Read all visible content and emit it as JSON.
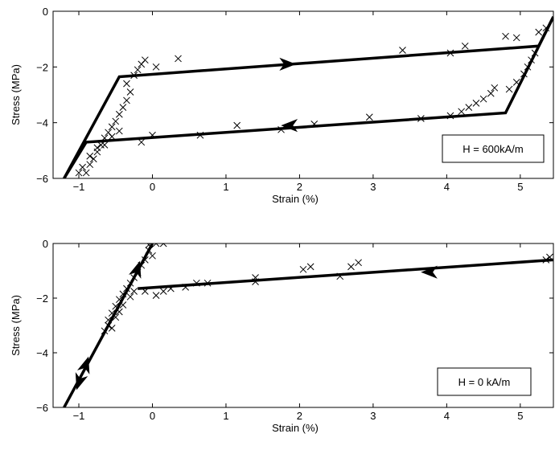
{
  "chart_data": [
    {
      "type": "scatter",
      "annotation": "H = 600kA/m",
      "xlabel": "Strain (%)",
      "ylabel": "Stress (MPa)",
      "xlim": [
        -1.35,
        5.45
      ],
      "ylim": [
        -6,
        0
      ],
      "xticks": [
        -1,
        0,
        1,
        2,
        3,
        4,
        5
      ],
      "yticks": [
        0,
        -2,
        -4,
        -6
      ],
      "x_tick_labels": [
        "−1",
        "0",
        "1",
        "2",
        "3",
        "4",
        "5"
      ],
      "y_tick_labels": [
        "0",
        "−2",
        "−4",
        "−6"
      ],
      "grid": false,
      "legend": "none",
      "model_line": [
        [
          -1.2,
          -6.0
        ],
        [
          -0.45,
          -2.35
        ],
        [
          5.25,
          -1.25
        ],
        [
          5.45,
          -0.2
        ]
      ],
      "model_line_unloading": [
        [
          5.45,
          -0.2
        ],
        [
          4.8,
          -3.65
        ],
        [
          -0.9,
          -4.7
        ],
        [
          -1.2,
          -6.0
        ]
      ],
      "arrows": [
        {
          "at": [
            1.85,
            -1.9
          ],
          "direction": "right"
        },
        {
          "at": [
            1.85,
            -4.1
          ],
          "direction": "left"
        }
      ],
      "measured": [
        [
          -1.0,
          -5.8
        ],
        [
          -0.95,
          -5.6
        ],
        [
          -0.9,
          -5.8
        ],
        [
          -0.85,
          -5.5
        ],
        [
          -0.8,
          -5.3
        ],
        [
          -0.75,
          -5.05
        ],
        [
          -0.7,
          -4.8
        ],
        [
          -0.65,
          -4.55
        ],
        [
          -0.6,
          -4.35
        ],
        [
          -0.55,
          -4.15
        ],
        [
          -0.5,
          -3.95
        ],
        [
          -0.45,
          -3.7
        ],
        [
          -0.4,
          -3.45
        ],
        [
          -0.35,
          -3.2
        ],
        [
          -0.3,
          -2.9
        ],
        [
          -0.85,
          -5.2
        ],
        [
          -0.75,
          -4.9
        ],
        [
          -0.65,
          -4.8
        ],
        [
          -0.55,
          -4.5
        ],
        [
          -0.45,
          -4.3
        ],
        [
          -0.35,
          -2.6
        ],
        [
          -0.25,
          -2.3
        ],
        [
          -0.2,
          -2.1
        ],
        [
          -0.15,
          -1.9
        ],
        [
          -0.1,
          -1.75
        ],
        [
          0.05,
          -2.0
        ],
        [
          0.35,
          -1.7
        ],
        [
          -0.15,
          -4.7
        ],
        [
          0.0,
          -4.45
        ],
        [
          0.65,
          -4.45
        ],
        [
          1.15,
          -4.1
        ],
        [
          1.75,
          -4.25
        ],
        [
          2.2,
          -4.05
        ],
        [
          2.95,
          -3.8
        ],
        [
          3.65,
          -3.85
        ],
        [
          4.05,
          -3.75
        ],
        [
          4.2,
          -3.6
        ],
        [
          4.3,
          -3.45
        ],
        [
          4.4,
          -3.3
        ],
        [
          4.5,
          -3.15
        ],
        [
          4.6,
          -2.95
        ],
        [
          4.65,
          -2.75
        ],
        [
          4.85,
          -2.8
        ],
        [
          4.95,
          -2.55
        ],
        [
          5.05,
          -2.25
        ],
        [
          5.1,
          -2.0
        ],
        [
          5.15,
          -1.75
        ],
        [
          5.2,
          -1.5
        ],
        [
          3.4,
          -1.4
        ],
        [
          4.05,
          -1.5
        ],
        [
          4.25,
          -1.25
        ],
        [
          4.8,
          -0.9
        ],
        [
          4.95,
          -0.95
        ],
        [
          5.25,
          -0.75
        ],
        [
          5.35,
          -0.6
        ]
      ]
    },
    {
      "type": "scatter",
      "annotation": "H = 0 kA/m",
      "xlabel": "Strain (%)",
      "ylabel": "Stress (MPa)",
      "xlim": [
        -1.35,
        5.45
      ],
      "ylim": [
        -6,
        0
      ],
      "xticks": [
        -1,
        0,
        1,
        2,
        3,
        4,
        5
      ],
      "yticks": [
        0,
        -2,
        -4,
        -6
      ],
      "x_tick_labels": [
        "−1",
        "0",
        "1",
        "2",
        "3",
        "4",
        "5"
      ],
      "y_tick_labels": [
        "0",
        "−2",
        "−4",
        "−6"
      ],
      "grid": false,
      "legend": "none",
      "model_line": [
        [
          -1.2,
          -6.0
        ],
        [
          0.0,
          0.0
        ]
      ],
      "model_line_unloading": [
        [
          5.45,
          -0.6
        ],
        [
          -0.2,
          -1.65
        ]
      ],
      "arrows": [
        {
          "at": [
            3.75,
            -1.05
          ],
          "direction": "left"
        },
        {
          "at": [
            -0.2,
            -0.9
          ],
          "direction": "up"
        },
        {
          "at": [
            -1.0,
            -5.1
          ],
          "direction": "down"
        },
        {
          "at": [
            -0.9,
            -4.4
          ],
          "direction": "up"
        }
      ],
      "measured": [
        [
          -0.05,
          -0.05
        ],
        [
          0.05,
          0.0
        ],
        [
          0.15,
          0.0
        ],
        [
          -0.05,
          -0.25
        ],
        [
          0.0,
          -0.45
        ],
        [
          -0.1,
          -0.6
        ],
        [
          -0.15,
          -0.8
        ],
        [
          -0.2,
          -1.05
        ],
        [
          -0.25,
          -1.25
        ],
        [
          -0.3,
          -1.45
        ],
        [
          -0.35,
          -1.65
        ],
        [
          -0.4,
          -1.85
        ],
        [
          -0.45,
          -2.05
        ],
        [
          -0.5,
          -2.3
        ],
        [
          -0.55,
          -2.55
        ],
        [
          -0.6,
          -2.8
        ],
        [
          -0.6,
          -3.0
        ],
        [
          -0.65,
          -3.2
        ],
        [
          -0.5,
          -2.7
        ],
        [
          -0.55,
          -3.1
        ],
        [
          -0.45,
          -2.5
        ],
        [
          -0.4,
          -2.25
        ],
        [
          -0.3,
          -1.95
        ],
        [
          -0.25,
          -1.75
        ],
        [
          -0.1,
          -1.75
        ],
        [
          0.05,
          -1.9
        ],
        [
          0.15,
          -1.75
        ],
        [
          0.25,
          -1.65
        ],
        [
          0.45,
          -1.6
        ],
        [
          0.6,
          -1.45
        ],
        [
          0.75,
          -1.45
        ],
        [
          1.4,
          -1.25
        ],
        [
          1.4,
          -1.4
        ],
        [
          2.05,
          -0.95
        ],
        [
          2.15,
          -0.85
        ],
        [
          2.55,
          -1.2
        ],
        [
          2.7,
          -0.85
        ],
        [
          2.8,
          -0.7
        ],
        [
          5.35,
          -0.6
        ],
        [
          5.4,
          -0.5
        ]
      ]
    }
  ]
}
